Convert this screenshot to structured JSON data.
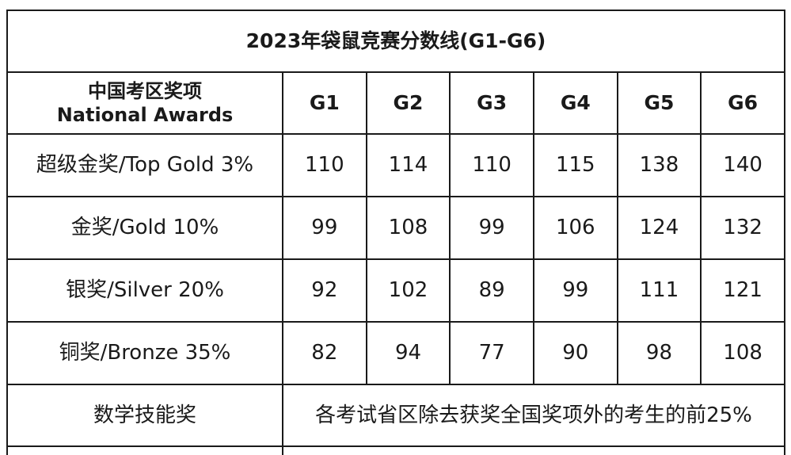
{
  "table": {
    "title": "2023年袋鼠竞赛分数线(G1-G6)",
    "header_label_cn": "中国考区奖项",
    "header_label_en": "National Awards",
    "grades": [
      "G1",
      "G2",
      "G3",
      "G4",
      "G5",
      "G6"
    ],
    "rows": [
      {
        "label": "超级金奖/Top Gold 3%",
        "values": [
          "110",
          "114",
          "110",
          "115",
          "138",
          "140"
        ]
      },
      {
        "label": "金奖/Gold 10%",
        "values": [
          "99",
          "108",
          "99",
          "106",
          "124",
          "132"
        ]
      },
      {
        "label": "银奖/Silver 20%",
        "values": [
          "92",
          "102",
          "89",
          "99",
          "111",
          "121"
        ]
      },
      {
        "label": "铜奖/Bronze 35%",
        "values": [
          "82",
          "94",
          "77",
          "90",
          "98",
          "108"
        ]
      }
    ],
    "skill_row": {
      "label": "数学技能奖",
      "description": "各考试省区除去获奖全国奖项外的考生的前25%"
    }
  }
}
